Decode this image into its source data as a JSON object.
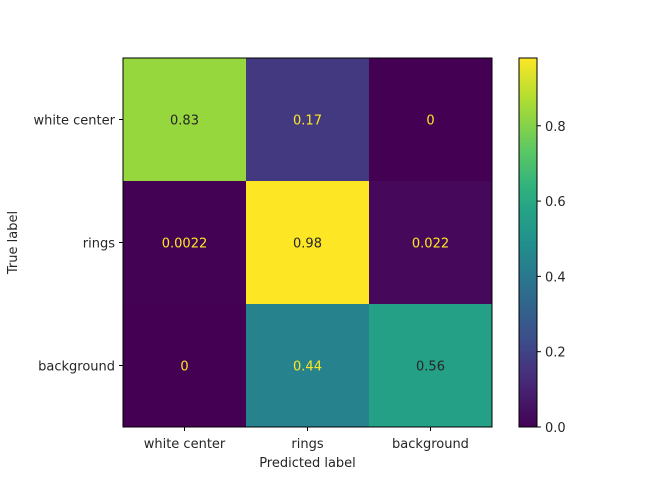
{
  "chart_data": {
    "type": "heatmap",
    "title": "",
    "xlabel": "Predicted label",
    "ylabel": "True label",
    "categories_x": [
      "white center",
      "rings",
      "background"
    ],
    "categories_y": [
      "white center",
      "rings",
      "background"
    ],
    "values": [
      [
        0.83,
        0.17,
        0
      ],
      [
        0.0022,
        0.98,
        0.022
      ],
      [
        0,
        0.44,
        0.56
      ]
    ],
    "value_labels": [
      [
        "0.83",
        "0.17",
        "0"
      ],
      [
        "0.0022",
        "0.98",
        "0.022"
      ],
      [
        "0",
        "0.44",
        "0.56"
      ]
    ],
    "colormap": "viridis",
    "colorbar": {
      "range": [
        0,
        0.98
      ],
      "ticks": [
        0.0,
        0.2,
        0.4,
        0.6,
        0.8
      ],
      "tick_labels": [
        "0.0",
        "0.2",
        "0.4",
        "0.6",
        "0.8"
      ]
    },
    "grid": false
  }
}
